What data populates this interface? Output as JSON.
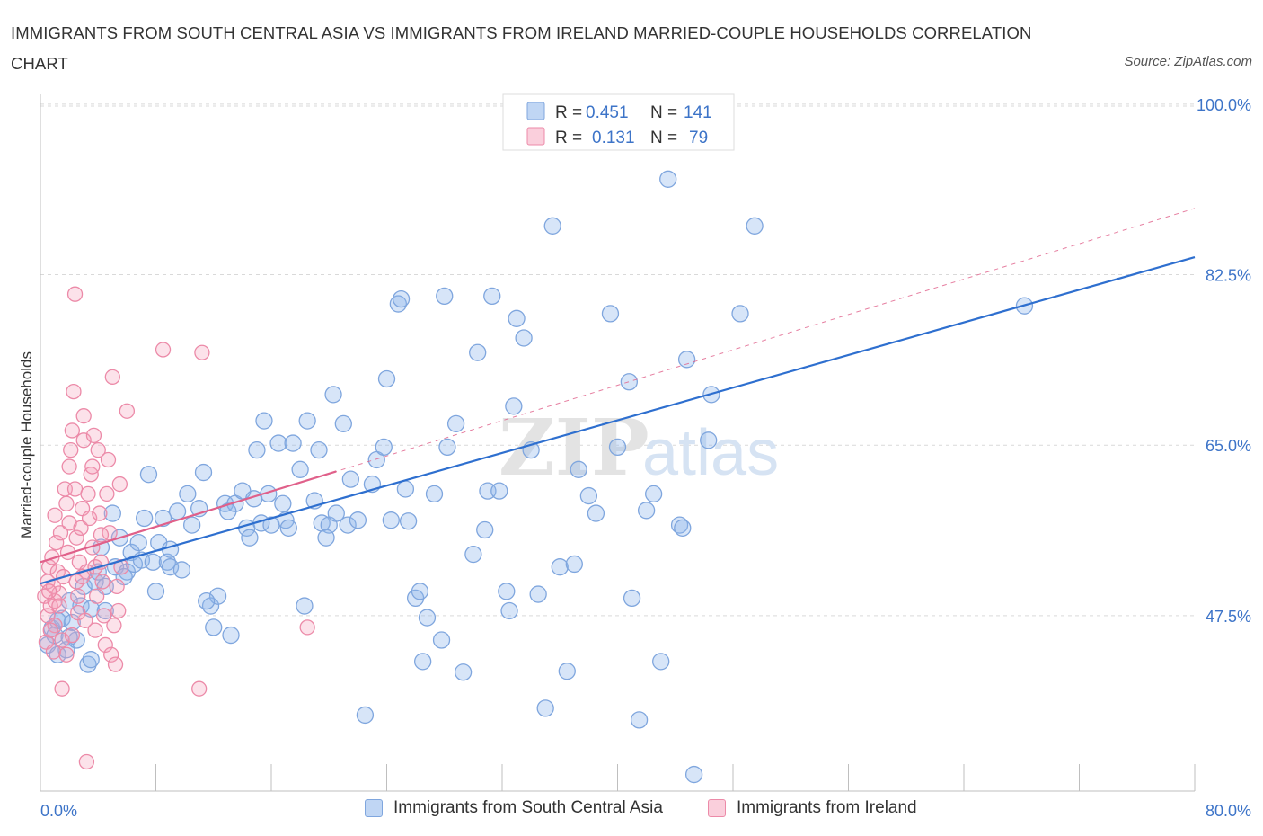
{
  "header": {
    "title": "IMMIGRANTS FROM SOUTH CENTRAL ASIA VS IMMIGRANTS FROM IRELAND MARRIED-COUPLE HOUSEHOLDS CORRELATION CHART",
    "source": "Source: ZipAtlas.com"
  },
  "legend_stats": {
    "row1": {
      "r_label": "R = ",
      "r_value": "0.451",
      "n_label": "N = ",
      "n_value": "141"
    },
    "row2": {
      "r_label": "R = ",
      "r_value": "0.131",
      "n_label": "N = ",
      "n_value": "79"
    }
  },
  "watermark": {
    "zip": "ZIP",
    "atlas": "atlas"
  },
  "colors": {
    "blue_fill": "rgba(140,180,235,0.35)",
    "blue_stroke": "#7fa6de",
    "blue_line": "#2e6fcf",
    "pink_fill": "rgba(245,160,185,0.30)",
    "pink_stroke": "#ec8aa8",
    "pink_line": "#e0608a",
    "axis_text": "#3d74c8",
    "grid": "#d9d9d9"
  },
  "chart_data": {
    "type": "scatter",
    "title": "IMMIGRANTS FROM SOUTH CENTRAL ASIA VS IMMIGRANTS FROM IRELAND MARRIED-COUPLE HOUSEHOLDS CORRELATION CHART",
    "xlabel": "",
    "ylabel": "Married-couple Households",
    "xlim": [
      0,
      80
    ],
    "ylim": [
      29.5,
      101
    ],
    "x_tick_labels": [
      "0.0%",
      "80.0%"
    ],
    "y_ticks": [
      47.5,
      65.0,
      82.5,
      100.0
    ],
    "y_tick_labels": [
      "47.5%",
      "65.0%",
      "82.5%",
      "100.0%"
    ],
    "grid": true,
    "legend_position": "top-center",
    "series": [
      {
        "name": "Immigrants from South Central Asia",
        "R": 0.451,
        "N": 141,
        "trend": {
          "x0": 0,
          "y0": 50.8,
          "x1": 80,
          "y1": 84.3,
          "style": "solid"
        },
        "points": [
          [
            0.5,
            44.5
          ],
          [
            0.8,
            46.2
          ],
          [
            1.2,
            43.5
          ],
          [
            1.5,
            47.2
          ],
          [
            1.0,
            45.5
          ],
          [
            1.8,
            44.0
          ],
          [
            2.0,
            49.0
          ],
          [
            2.2,
            46.8
          ],
          [
            2.5,
            45.0
          ],
          [
            2.8,
            48.5
          ],
          [
            3.0,
            50.5
          ],
          [
            3.3,
            42.5
          ],
          [
            3.5,
            48.2
          ],
          [
            3.8,
            51.0
          ],
          [
            4.0,
            52.0
          ],
          [
            4.2,
            54.5
          ],
          [
            4.5,
            50.5
          ],
          [
            5.0,
            58.0
          ],
          [
            5.2,
            52.5
          ],
          [
            5.5,
            55.5
          ],
          [
            6.0,
            52.0
          ],
          [
            6.3,
            54.0
          ],
          [
            6.5,
            52.8
          ],
          [
            7.0,
            53.2
          ],
          [
            7.2,
            57.5
          ],
          [
            7.5,
            62.0
          ],
          [
            7.8,
            53.0
          ],
          [
            8.2,
            55.0
          ],
          [
            8.5,
            57.5
          ],
          [
            8.8,
            53.0
          ],
          [
            9.0,
            52.5
          ],
          [
            9.5,
            58.2
          ],
          [
            9.8,
            52.2
          ],
          [
            10.2,
            60.0
          ],
          [
            10.5,
            56.8
          ],
          [
            11.0,
            58.5
          ],
          [
            11.3,
            62.2
          ],
          [
            11.8,
            48.5
          ],
          [
            12.0,
            46.3
          ],
          [
            12.3,
            49.5
          ],
          [
            12.8,
            59.0
          ],
          [
            13.2,
            45.5
          ],
          [
            13.5,
            59.0
          ],
          [
            14.0,
            60.3
          ],
          [
            14.3,
            56.5
          ],
          [
            14.5,
            55.5
          ],
          [
            14.8,
            59.5
          ],
          [
            15.0,
            64.5
          ],
          [
            15.3,
            57.0
          ],
          [
            15.5,
            67.5
          ],
          [
            15.8,
            60.0
          ],
          [
            16.0,
            56.8
          ],
          [
            16.5,
            65.2
          ],
          [
            17.0,
            57.3
          ],
          [
            17.2,
            56.5
          ],
          [
            17.5,
            65.2
          ],
          [
            18.0,
            62.5
          ],
          [
            18.3,
            48.5
          ],
          [
            18.5,
            67.5
          ],
          [
            19.0,
            59.3
          ],
          [
            19.3,
            64.5
          ],
          [
            19.5,
            57.0
          ],
          [
            20.0,
            56.8
          ],
          [
            20.3,
            70.2
          ],
          [
            20.5,
            58.0
          ],
          [
            21.0,
            67.2
          ],
          [
            21.3,
            56.8
          ],
          [
            21.5,
            61.5
          ],
          [
            22.0,
            57.3
          ],
          [
            22.5,
            37.3
          ],
          [
            23.0,
            61.0
          ],
          [
            23.3,
            63.5
          ],
          [
            23.8,
            64.8
          ],
          [
            24.0,
            71.8
          ],
          [
            24.3,
            57.3
          ],
          [
            24.8,
            79.5
          ],
          [
            25.0,
            80.0
          ],
          [
            25.3,
            60.5
          ],
          [
            25.5,
            57.2
          ],
          [
            26.0,
            49.3
          ],
          [
            26.3,
            50.0
          ],
          [
            26.5,
            42.8
          ],
          [
            26.8,
            47.3
          ],
          [
            27.3,
            60.0
          ],
          [
            27.8,
            45.0
          ],
          [
            28.0,
            80.3
          ],
          [
            28.2,
            64.8
          ],
          [
            28.8,
            67.2
          ],
          [
            29.3,
            41.7
          ],
          [
            30.0,
            53.8
          ],
          [
            30.3,
            74.5
          ],
          [
            30.8,
            56.3
          ],
          [
            31.0,
            60.3
          ],
          [
            31.3,
            80.3
          ],
          [
            31.8,
            60.3
          ],
          [
            32.3,
            50.0
          ],
          [
            32.5,
            48.0
          ],
          [
            32.8,
            69.0
          ],
          [
            33.0,
            78.0
          ],
          [
            33.5,
            76.0
          ],
          [
            34.0,
            64.5
          ],
          [
            34.5,
            49.7
          ],
          [
            35.0,
            38.0
          ],
          [
            35.5,
            87.5
          ],
          [
            36.0,
            52.5
          ],
          [
            36.5,
            41.8
          ],
          [
            37.0,
            52.8
          ],
          [
            37.3,
            62.5
          ],
          [
            38.0,
            59.8
          ],
          [
            38.5,
            58.0
          ],
          [
            39.5,
            78.5
          ],
          [
            40.0,
            64.8
          ],
          [
            40.8,
            71.5
          ],
          [
            41.0,
            49.3
          ],
          [
            41.5,
            36.8
          ],
          [
            42.0,
            58.3
          ],
          [
            42.5,
            60.0
          ],
          [
            43.0,
            42.8
          ],
          [
            43.5,
            92.3
          ],
          [
            44.3,
            56.8
          ],
          [
            44.5,
            56.5
          ],
          [
            44.8,
            73.8
          ],
          [
            45.3,
            31.2
          ],
          [
            46.3,
            65.5
          ],
          [
            46.5,
            70.2
          ],
          [
            48.5,
            78.5
          ],
          [
            49.5,
            87.5
          ],
          [
            68.2,
            79.3
          ],
          [
            3.5,
            43.0
          ],
          [
            2.0,
            45.3
          ],
          [
            4.5,
            48.0
          ],
          [
            5.8,
            51.5
          ],
          [
            9.0,
            54.3
          ],
          [
            13.0,
            58.2
          ],
          [
            16.8,
            59.0
          ],
          [
            19.8,
            55.5
          ],
          [
            11.5,
            49.0
          ],
          [
            6.8,
            55.0
          ],
          [
            8.0,
            50.0
          ],
          [
            1.2,
            47.0
          ]
        ]
      },
      {
        "name": "Immigrants from Ireland",
        "R": 0.131,
        "N": 79,
        "trend": {
          "x0": 0,
          "y0": 53.0,
          "x1": 80,
          "y1": 89.3,
          "style": "dashed"
        },
        "points": [
          [
            0.3,
            49.5
          ],
          [
            0.5,
            51.0
          ],
          [
            0.5,
            47.5
          ],
          [
            0.6,
            52.5
          ],
          [
            0.7,
            48.5
          ],
          [
            0.8,
            53.5
          ],
          [
            0.9,
            50.5
          ],
          [
            1.0,
            49.0
          ],
          [
            1.0,
            46.5
          ],
          [
            1.1,
            55.0
          ],
          [
            1.2,
            52.0
          ],
          [
            1.3,
            48.5
          ],
          [
            1.4,
            56.0
          ],
          [
            1.5,
            45.0
          ],
          [
            1.6,
            51.5
          ],
          [
            1.7,
            60.5
          ],
          [
            1.8,
            59.0
          ],
          [
            1.9,
            54.0
          ],
          [
            2.0,
            57.0
          ],
          [
            2.0,
            62.8
          ],
          [
            2.1,
            64.5
          ],
          [
            2.2,
            66.5
          ],
          [
            2.3,
            70.5
          ],
          [
            2.4,
            80.5
          ],
          [
            2.5,
            51.0
          ],
          [
            2.5,
            55.5
          ],
          [
            2.6,
            49.5
          ],
          [
            2.7,
            53.0
          ],
          [
            2.8,
            56.5
          ],
          [
            2.9,
            58.5
          ],
          [
            3.0,
            65.5
          ],
          [
            3.0,
            68.0
          ],
          [
            3.1,
            47.0
          ],
          [
            3.2,
            52.0
          ],
          [
            3.3,
            60.0
          ],
          [
            3.4,
            57.5
          ],
          [
            3.5,
            62.0
          ],
          [
            3.6,
            54.5
          ],
          [
            3.7,
            66.0
          ],
          [
            3.8,
            52.5
          ],
          [
            3.9,
            49.5
          ],
          [
            4.0,
            64.5
          ],
          [
            4.1,
            58.0
          ],
          [
            4.2,
            53.0
          ],
          [
            4.3,
            51.0
          ],
          [
            4.4,
            47.5
          ],
          [
            4.5,
            44.5
          ],
          [
            4.6,
            60.0
          ],
          [
            4.7,
            63.5
          ],
          [
            4.8,
            56.0
          ],
          [
            4.9,
            43.5
          ],
          [
            5.0,
            72.0
          ],
          [
            5.1,
            46.5
          ],
          [
            5.2,
            42.5
          ],
          [
            5.3,
            50.5
          ],
          [
            5.4,
            48.0
          ],
          [
            5.5,
            61.0
          ],
          [
            5.6,
            52.5
          ],
          [
            1.5,
            40.0
          ],
          [
            3.2,
            32.5
          ],
          [
            8.5,
            74.8
          ],
          [
            11.0,
            40.0
          ],
          [
            11.2,
            74.5
          ],
          [
            6.0,
            68.5
          ],
          [
            18.5,
            46.3
          ],
          [
            0.4,
            44.8
          ],
          [
            0.9,
            43.8
          ],
          [
            1.8,
            43.5
          ],
          [
            2.6,
            47.8
          ],
          [
            3.8,
            46.0
          ],
          [
            0.7,
            46.0
          ],
          [
            1.3,
            49.8
          ],
          [
            2.2,
            45.5
          ],
          [
            2.9,
            51.5
          ],
          [
            4.2,
            55.8
          ],
          [
            1.0,
            57.8
          ],
          [
            2.4,
            60.5
          ],
          [
            3.6,
            62.8
          ],
          [
            0.6,
            50.0
          ]
        ]
      }
    ]
  },
  "bottom_legend": {
    "item1": "Immigrants from South Central Asia",
    "item2": "Immigrants from Ireland"
  }
}
